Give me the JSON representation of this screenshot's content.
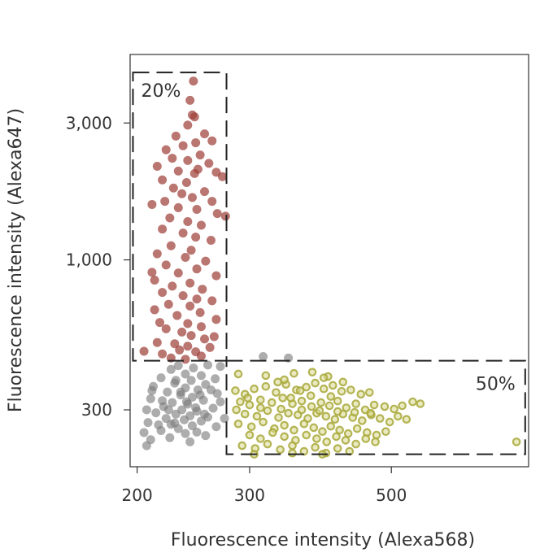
{
  "chart_data": {
    "type": "scatter",
    "xlabel": "Fluorescence intensity (Alexa568)",
    "ylabel": "Fluorescence intensity (Alexa647)",
    "x_scale": "log",
    "y_scale": "log",
    "xlim": [
      195,
      820
    ],
    "ylim": [
      190,
      5200
    ],
    "x_ticks": [
      {
        "value": 200,
        "label": "200"
      },
      {
        "value": 300,
        "label": "300"
      },
      {
        "value": 500,
        "label": "500"
      }
    ],
    "y_ticks": [
      {
        "value": 300,
        "label": "300"
      },
      {
        "value": 1000,
        "label": "1,000"
      },
      {
        "value": 3000,
        "label": "3,000"
      }
    ],
    "grid": false,
    "gates": [
      {
        "label": "20%",
        "x_range": [
          197,
          276
        ],
        "y_range": [
          445,
          4500
        ]
      },
      {
        "label": "50%",
        "x_range": [
          276,
          810
        ],
        "y_range": [
          210,
          445
        ]
      }
    ],
    "colors": {
      "red": "#a0413a",
      "grey": "#7a7a7a",
      "yellow_edge": "#a8a83a",
      "yellow_fill": "#d8d890"
    },
    "series": [
      {
        "key": "red",
        "points": [
          [
            245,
            4200
          ],
          [
            242,
            3600
          ],
          [
            246,
            3150
          ],
          [
            240,
            2950
          ],
          [
            255,
            2750
          ],
          [
            230,
            2700
          ],
          [
            247,
            2560
          ],
          [
            262,
            2600
          ],
          [
            236,
            2500
          ],
          [
            222,
            2420
          ],
          [
            251,
            2320
          ],
          [
            227,
            2260
          ],
          [
            240,
            2220
          ],
          [
            259,
            2170
          ],
          [
            215,
            2120
          ],
          [
            232,
            2040
          ],
          [
            249,
            2070
          ],
          [
            266,
            2020
          ],
          [
            246,
            2000
          ],
          [
            272,
            1950
          ],
          [
            219,
            1900
          ],
          [
            239,
            1860
          ],
          [
            228,
            1780
          ],
          [
            255,
            1730
          ],
          [
            235,
            1700
          ],
          [
            244,
            1650
          ],
          [
            262,
            1600
          ],
          [
            211,
            1560
          ],
          [
            232,
            1520
          ],
          [
            248,
            1500
          ],
          [
            267,
            1450
          ],
          [
            275,
            1420
          ],
          [
            225,
            1400
          ],
          [
            240,
            1360
          ],
          [
            252,
            1320
          ],
          [
            219,
            1280
          ],
          [
            236,
            1240
          ],
          [
            247,
            1200
          ],
          [
            261,
            1170
          ],
          [
            226,
            1120
          ],
          [
            243,
            1080
          ],
          [
            215,
            1050
          ],
          [
            238,
            1020
          ],
          [
            256,
            990
          ],
          [
            222,
            960
          ],
          [
            248,
            930
          ],
          [
            232,
            900
          ],
          [
            266,
            880
          ],
          [
            213,
            850
          ],
          [
            242,
            830
          ],
          [
            227,
            810
          ],
          [
            253,
            790
          ],
          [
            219,
            770
          ],
          [
            236,
            750
          ],
          [
            248,
            730
          ],
          [
            262,
            720
          ],
          [
            224,
            700
          ],
          [
            242,
            690
          ],
          [
            213,
            670
          ],
          [
            251,
            655
          ],
          [
            231,
            640
          ],
          [
            266,
            620
          ],
          [
            217,
            605
          ],
          [
            240,
            600
          ],
          [
            252,
            585
          ],
          [
            222,
            575
          ],
          [
            235,
            560
          ],
          [
            243,
            545
          ],
          [
            255,
            530
          ],
          [
            215,
            515
          ],
          [
            229,
            510
          ],
          [
            240,
            500
          ],
          [
            260,
            495
          ],
          [
            233,
            485
          ],
          [
            247,
            478
          ],
          [
            219,
            470
          ],
          [
            252,
            462
          ],
          [
            226,
            455
          ],
          [
            238,
            450
          ],
          [
            211,
            905
          ],
          [
            264,
            540
          ],
          [
            205,
            480
          ],
          [
            221,
            1600
          ],
          [
            244,
            3200
          ]
        ]
      },
      {
        "key": "grey",
        "points": [
          [
            315,
            460
          ],
          [
            345,
            455
          ],
          [
            232,
            428
          ],
          [
            245,
            420
          ],
          [
            258,
            430
          ],
          [
            226,
            415
          ],
          [
            270,
            425
          ],
          [
            238,
            400
          ],
          [
            252,
            395
          ],
          [
            218,
            388
          ],
          [
            265,
            385
          ],
          [
            243,
            380
          ],
          [
            229,
            372
          ],
          [
            256,
            368
          ],
          [
            212,
            362
          ],
          [
            238,
            358
          ],
          [
            249,
            352
          ],
          [
            223,
            346
          ],
          [
            267,
            342
          ],
          [
            234,
            338
          ],
          [
            244,
            332
          ],
          [
            210,
            328
          ],
          [
            254,
            324
          ],
          [
            227,
            318
          ],
          [
            240,
            314
          ],
          [
            220,
            308
          ],
          [
            263,
            304
          ],
          [
            235,
            300
          ],
          [
            248,
            297
          ],
          [
            214,
            293
          ],
          [
            230,
            290
          ],
          [
            242,
            286
          ],
          [
            258,
            283
          ],
          [
            222,
            280
          ],
          [
            237,
            277
          ],
          [
            252,
            274
          ],
          [
            208,
            271
          ],
          [
            226,
            267
          ],
          [
            244,
            264
          ],
          [
            266,
            262
          ],
          [
            232,
            258
          ],
          [
            218,
            254
          ],
          [
            248,
            251
          ],
          [
            238,
            248
          ],
          [
            256,
            244
          ],
          [
            225,
            240
          ],
          [
            210,
            236
          ],
          [
            242,
            232
          ],
          [
            230,
            380
          ],
          [
            261,
            352
          ],
          [
            219,
            323
          ],
          [
            247,
            305
          ],
          [
            234,
            346
          ],
          [
            255,
            290
          ],
          [
            229,
            270
          ],
          [
            211,
            350
          ],
          [
            207,
            300
          ],
          [
            205,
            250
          ],
          [
            207,
            225
          ],
          [
            274,
            280
          ],
          [
            270,
            320
          ],
          [
            224,
            300
          ],
          [
            239,
            320
          ],
          [
            251,
            338
          ],
          [
            216,
            266
          ]
        ]
      },
      {
        "key": "yellow",
        "points": [
          [
            285,
            350
          ],
          [
            295,
            340
          ],
          [
            305,
            355
          ],
          [
            318,
            362
          ],
          [
            330,
            345
          ],
          [
            342,
            368
          ],
          [
            355,
            352
          ],
          [
            368,
            360
          ],
          [
            380,
            372
          ],
          [
            392,
            355
          ],
          [
            405,
            365
          ],
          [
            418,
            348
          ],
          [
            432,
            352
          ],
          [
            448,
            340
          ],
          [
            462,
            345
          ],
          [
            290,
            320
          ],
          [
            300,
            312
          ],
          [
            312,
            325
          ],
          [
            325,
            318
          ],
          [
            338,
            330
          ],
          [
            350,
            315
          ],
          [
            362,
            322
          ],
          [
            375,
            308
          ],
          [
            388,
            318
          ],
          [
            400,
            310
          ],
          [
            412,
            322
          ],
          [
            425,
            305
          ],
          [
            440,
            315
          ],
          [
            455,
            300
          ],
          [
            470,
            312
          ],
          [
            488,
            308
          ],
          [
            505,
            302
          ],
          [
            520,
            310
          ],
          [
            540,
            320
          ],
          [
            295,
            290
          ],
          [
            308,
            285
          ],
          [
            320,
            298
          ],
          [
            333,
            282
          ],
          [
            345,
            292
          ],
          [
            357,
            288
          ],
          [
            370,
            280
          ],
          [
            382,
            292
          ],
          [
            395,
            285
          ],
          [
            408,
            278
          ],
          [
            420,
            290
          ],
          [
            435,
            282
          ],
          [
            450,
            275
          ],
          [
            465,
            288
          ],
          [
            480,
            280
          ],
          [
            497,
            272
          ],
          [
            512,
            285
          ],
          [
            528,
            278
          ],
          [
            288,
            268
          ],
          [
            302,
            262
          ],
          [
            315,
            272
          ],
          [
            328,
            258
          ],
          [
            340,
            265
          ],
          [
            352,
            255
          ],
          [
            365,
            268
          ],
          [
            378,
            260
          ],
          [
            390,
            252
          ],
          [
            402,
            263
          ],
          [
            415,
            255
          ],
          [
            428,
            248
          ],
          [
            442,
            258
          ],
          [
            458,
            250
          ],
          [
            474,
            245
          ],
          [
            490,
            252
          ],
          [
            300,
            245
          ],
          [
            312,
            238
          ],
          [
            326,
            250
          ],
          [
            340,
            242
          ],
          [
            354,
            235
          ],
          [
            368,
            245
          ],
          [
            382,
            238
          ],
          [
            396,
            232
          ],
          [
            410,
            242
          ],
          [
            424,
            235
          ],
          [
            440,
            228
          ],
          [
            456,
            238
          ],
          [
            472,
            232
          ],
          [
            292,
            225
          ],
          [
            306,
            220
          ],
          [
            320,
            228
          ],
          [
            335,
            218
          ],
          [
            350,
            225
          ],
          [
            365,
            215
          ],
          [
            380,
            222
          ],
          [
            395,
            212
          ],
          [
            412,
            220
          ],
          [
            430,
            215
          ],
          [
            350,
            212
          ],
          [
            390,
            210
          ],
          [
            305,
            210
          ],
          [
            785,
            232
          ],
          [
            555,
            315
          ],
          [
            288,
            400
          ],
          [
            318,
            395
          ],
          [
            352,
            402
          ],
          [
            376,
            406
          ],
          [
            398,
            392
          ],
          [
            340,
            382
          ],
          [
            332,
            375
          ],
          [
            392,
            388
          ],
          [
            420,
            375
          ],
          [
            360,
            350
          ],
          [
            312,
            305
          ],
          [
            336,
            302
          ],
          [
            362,
            300
          ],
          [
            386,
            298
          ],
          [
            412,
            296
          ],
          [
            438,
            294
          ],
          [
            464,
            292
          ],
          [
            348,
            330
          ],
          [
            374,
            336
          ],
          [
            402,
            334
          ],
          [
            298,
            330
          ],
          [
            286,
            300
          ]
        ]
      }
    ]
  }
}
